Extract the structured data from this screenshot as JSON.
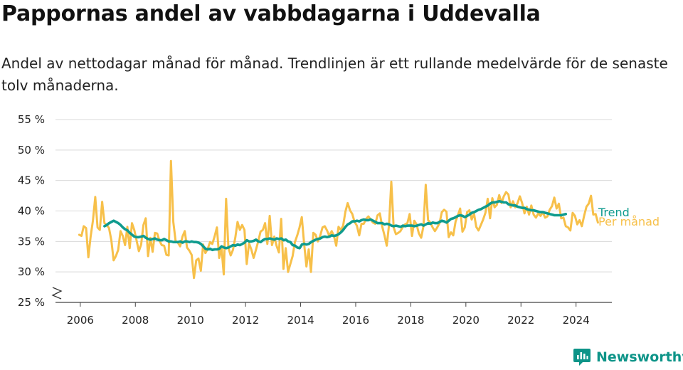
{
  "chart_data": {
    "type": "line",
    "title": "Pappornas andel av vabbdagarna i Uddevalla",
    "subtitle": "Andel av nettodagar månad för månad. Trendlinjen är ett rullande medelvärde för de senaste tolv månaderna.",
    "y_ticks": [
      25,
      30,
      35,
      40,
      45,
      50,
      55
    ],
    "y_tick_suffix": " %",
    "ylim": [
      25,
      55
    ],
    "y_axis_broken": true,
    "x_ticks": [
      2006,
      2008,
      2010,
      2012,
      2014,
      2016,
      2018,
      2020,
      2022,
      2024
    ],
    "xlim": [
      2005.1,
      2025.3
    ],
    "grid": true,
    "series": [
      {
        "name": "Per månad",
        "color": "#f7c04a",
        "start": 2005.96,
        "step_months": 1,
        "values": [
          36.1,
          35.9,
          37.5,
          37.2,
          32.4,
          35.8,
          38.4,
          42.3,
          37.3,
          36.9,
          41.5,
          38.0,
          37.7,
          37.2,
          35.2,
          31.9,
          32.6,
          33.6,
          36.7,
          35.9,
          34.4,
          37.4,
          33.9,
          38.0,
          36.9,
          35.2,
          33.4,
          34.5,
          37.7,
          38.8,
          32.6,
          35.6,
          33.3,
          36.4,
          36.3,
          35.1,
          34.4,
          34.3,
          32.8,
          32.7,
          48.2,
          38.2,
          35.1,
          34.8,
          34.2,
          35.8,
          36.7,
          34.0,
          33.5,
          32.8,
          29.0,
          31.9,
          32.2,
          30.2,
          34.5,
          33.1,
          33.8,
          34.9,
          34.6,
          35.8,
          37.3,
          32.3,
          34.0,
          29.6,
          42.0,
          34.0,
          32.7,
          33.6,
          35.6,
          38.2,
          36.9,
          37.7,
          36.9,
          31.3,
          34.7,
          33.7,
          32.3,
          33.6,
          35.0,
          36.6,
          36.9,
          38.0,
          34.6,
          39.2,
          34.4,
          35.8,
          34.3,
          33.2,
          38.7,
          30.5,
          33.9,
          30.0,
          31.3,
          32.6,
          34.9,
          36.0,
          37.3,
          39.0,
          34.7,
          30.9,
          33.7,
          30.0,
          36.4,
          36.1,
          35.0,
          35.9,
          37.3,
          37.5,
          36.8,
          35.9,
          36.7,
          35.9,
          34.3,
          37.4,
          36.9,
          37.6,
          39.9,
          41.3,
          40.1,
          39.5,
          38.2,
          37.6,
          36.0,
          37.9,
          37.9,
          38.7,
          39.1,
          38.6,
          38.1,
          37.9,
          39.3,
          39.6,
          37.5,
          36.0,
          34.3,
          37.7,
          44.8,
          37.3,
          36.2,
          36.4,
          36.7,
          37.4,
          37.8,
          38.0,
          39.5,
          35.9,
          38.4,
          37.8,
          36.3,
          35.6,
          37.5,
          44.3,
          38.5,
          38.1,
          37.3,
          36.7,
          37.3,
          38.0,
          39.8,
          40.2,
          39.9,
          35.7,
          36.5,
          36.0,
          38.3,
          39.3,
          40.4,
          36.6,
          37.3,
          39.8,
          40.1,
          38.6,
          39.6,
          37.4,
          36.8,
          37.7,
          38.6,
          39.7,
          42.0,
          38.8,
          42.1,
          40.6,
          41.0,
          42.6,
          41.3,
          42.4,
          43.1,
          42.7,
          40.6,
          41.6,
          40.6,
          41.3,
          42.4,
          41.3,
          39.6,
          40.7,
          39.4,
          40.9,
          39.4,
          38.9,
          39.6,
          39.2,
          39.8,
          38.9,
          39.1,
          40.2,
          40.8,
          42.2,
          40.4,
          41.2,
          38.8,
          38.9,
          37.5,
          37.3,
          36.8,
          39.7,
          39.2,
          37.8,
          38.5,
          37.5,
          39.2,
          40.7,
          41.2,
          42.5,
          39.4,
          39.5,
          38.1
        ]
      },
      {
        "name": "Trend",
        "color": "#0f9b8e",
        "start": 2006.88,
        "step_months": 1,
        "values": [
          37.5,
          37.7,
          38.0,
          38.2,
          38.4,
          38.2,
          38.0,
          37.7,
          37.3,
          37.0,
          36.8,
          36.4,
          36.1,
          35.8,
          35.7,
          35.7,
          35.8,
          35.9,
          35.6,
          35.4,
          35.3,
          35.4,
          35.5,
          35.3,
          35.2,
          35.2,
          35.4,
          35.2,
          35.0,
          35.0,
          34.9,
          34.9,
          34.9,
          35.0,
          34.8,
          35.0,
          35.0,
          34.9,
          35.0,
          34.9,
          34.9,
          34.8,
          34.6,
          34.2,
          33.8,
          33.7,
          33.8,
          33.6,
          33.7,
          33.7,
          33.8,
          34.2,
          34.0,
          33.9,
          34.0,
          34.2,
          34.4,
          34.3,
          34.5,
          34.4,
          34.6,
          34.8,
          35.2,
          35.0,
          35.0,
          35.1,
          35.3,
          35.0,
          34.9,
          35.2,
          35.4,
          35.4,
          35.5,
          35.4,
          35.3,
          35.5,
          35.4,
          35.5,
          35.2,
          35.3,
          35.0,
          34.9,
          34.4,
          34.3,
          34.0,
          33.9,
          34.5,
          34.6,
          34.5,
          34.6,
          34.9,
          35.1,
          35.3,
          35.4,
          35.5,
          35.7,
          35.8,
          35.7,
          35.8,
          36.0,
          35.9,
          36.0,
          36.2,
          36.5,
          36.9,
          37.4,
          37.8,
          38.0,
          38.3,
          38.3,
          38.4,
          38.3,
          38.5,
          38.6,
          38.5,
          38.5,
          38.6,
          38.4,
          38.2,
          38.0,
          38.0,
          38.0,
          37.8,
          37.9,
          37.8,
          37.6,
          37.5,
          37.6,
          37.5,
          37.4,
          37.6,
          37.5,
          37.6,
          37.6,
          37.6,
          37.5,
          37.6,
          37.7,
          37.8,
          37.6,
          37.8,
          38.0,
          37.9,
          38.1,
          38.0,
          38.0,
          38.2,
          38.4,
          38.3,
          38.1,
          38.4,
          38.7,
          38.8,
          39.0,
          39.2,
          39.3,
          39.2,
          39.0,
          39.2,
          39.4,
          39.7,
          39.8,
          40.0,
          40.2,
          40.3,
          40.5,
          40.7,
          40.9,
          41.2,
          41.4,
          41.4,
          41.5,
          41.6,
          41.5,
          41.4,
          41.4,
          41.1,
          41.0,
          40.9,
          40.9,
          40.7,
          40.6,
          40.5,
          40.5,
          40.3,
          40.2,
          40.1,
          40.1,
          40.0,
          39.9,
          39.8,
          39.8,
          39.7,
          39.6,
          39.5,
          39.4,
          39.3,
          39.3,
          39.3,
          39.3,
          39.4,
          39.5
        ]
      }
    ]
  },
  "brand": {
    "name": "Newsworthy"
  }
}
